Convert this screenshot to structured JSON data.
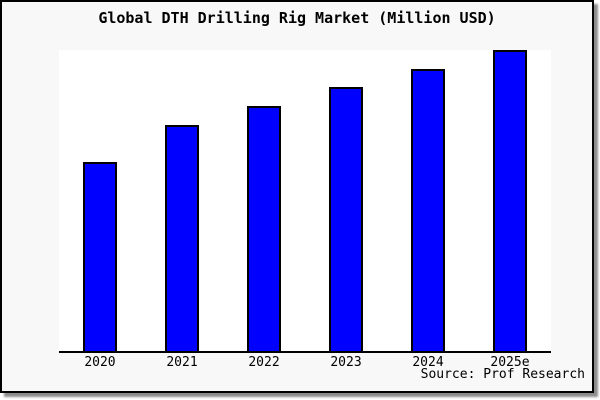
{
  "title": "Global DTH Drilling Rig Market (Million USD)",
  "source": "Source: Prof Research",
  "colors": {
    "bar_fill": "#0000ff",
    "bar_border": "#000000",
    "background": "#f8f8f8",
    "plot_background": "#ffffff",
    "axis": "#000000",
    "frame_border": "#000000",
    "shadow": "#888888"
  },
  "chart_data": {
    "type": "bar",
    "title": "Global DTH Drilling Rig Market (Million USD)",
    "categories": [
      "2020",
      "2021",
      "2022",
      "2023",
      "2024",
      "2025e"
    ],
    "values": [
      62.8,
      75.1,
      81.4,
      87.7,
      93.7,
      100
    ],
    "value_note": "no y-axis scale shown; values are relative, normalized to 2025e = 100",
    "xlabel": "",
    "ylabel": "",
    "ylim": [
      0,
      100
    ],
    "grid": false,
    "legend": false,
    "y_axis_visible": false,
    "x_axis_visible": true,
    "annotation": "Source: Prof Research"
  }
}
